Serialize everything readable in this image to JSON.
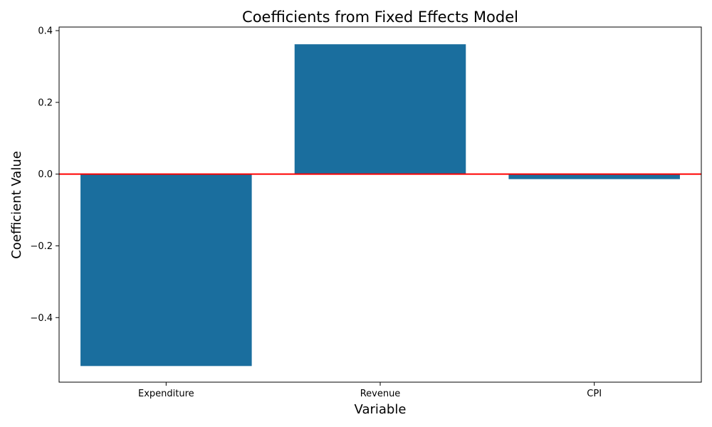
{
  "chart_data": {
    "type": "bar",
    "title": "Coefficients from Fixed Effects Model",
    "xlabel": "Variable",
    "ylabel": "Coefficient Value",
    "categories": [
      "Expenditure",
      "Revenue",
      "CPI"
    ],
    "values": [
      -0.535,
      0.362,
      -0.014
    ],
    "ylim": [
      -0.58,
      0.41
    ],
    "yticks": [
      -0.4,
      -0.2,
      0.0,
      0.2,
      0.4
    ],
    "ytick_labels": [
      "−0.4",
      "−0.2",
      "0.0",
      "0.2",
      "0.4"
    ],
    "grid": false,
    "bar_color": "#1a6e9e",
    "reference_line": {
      "value": 0.0,
      "color": "#ff0000"
    }
  }
}
